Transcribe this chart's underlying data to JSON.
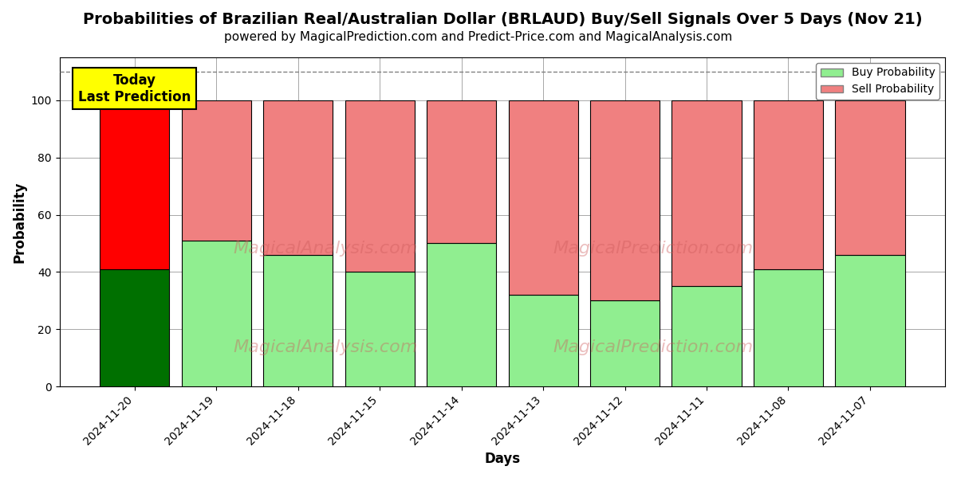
{
  "title": "Probabilities of Brazilian Real/Australian Dollar (BRLAUD) Buy/Sell Signals Over 5 Days (Nov 21)",
  "subtitle": "powered by MagicalPrediction.com and Predict-Price.com and MagicalAnalysis.com",
  "xlabel": "Days",
  "ylabel": "Probability",
  "dates": [
    "2024-11-20",
    "2024-11-19",
    "2024-11-18",
    "2024-11-15",
    "2024-11-14",
    "2024-11-13",
    "2024-11-12",
    "2024-11-11",
    "2024-11-08",
    "2024-11-07"
  ],
  "buy_values": [
    41,
    51,
    46,
    40,
    50,
    32,
    30,
    35,
    41,
    46
  ],
  "sell_values": [
    59,
    49,
    54,
    60,
    50,
    68,
    70,
    65,
    59,
    54
  ],
  "today_bar_buy_color": "#007000",
  "today_bar_sell_color": "#ff0000",
  "other_bar_buy_color": "#90ee90",
  "other_bar_sell_color": "#f08080",
  "bar_edge_color": "#000000",
  "today_annotation_bg": "#ffff00",
  "today_annotation_text": "Today\nLast Prediction",
  "dashed_line_y": 110,
  "ylim": [
    0,
    115
  ],
  "yticks": [
    0,
    20,
    40,
    60,
    80,
    100
  ],
  "legend_buy_color": "#90ee90",
  "legend_sell_color": "#f08080",
  "grid_color": "#999999",
  "bar_width": 0.85,
  "title_fontsize": 14,
  "subtitle_fontsize": 11,
  "axis_label_fontsize": 12,
  "tick_fontsize": 10,
  "watermark1_text": "MagicalAnalysis.com",
  "watermark2_text": "MagicalPrediction.com",
  "watermark_color": "#cd5c5c",
  "watermark_alpha": 0.4,
  "watermark_fontsize": 16
}
